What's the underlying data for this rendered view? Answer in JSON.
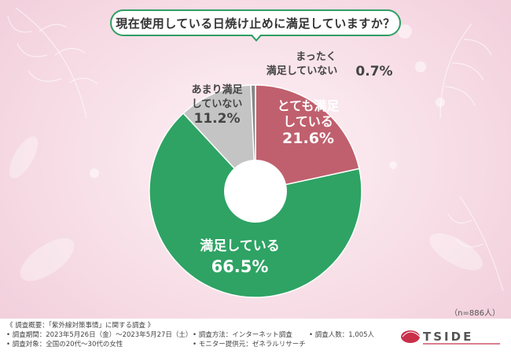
{
  "title": "現在使用している日焼け止めに満足していますか？",
  "sample_size": "（n=886人）",
  "chart_data": {
    "type": "pie",
    "title": "現在使用している日焼け止めに満足していますか？",
    "slices": [
      {
        "label_lines": [
          "とても満足",
          "している"
        ],
        "value": 21.6,
        "value_text": "21.6%",
        "color": "#c0606e",
        "text_color": "#ffffff"
      },
      {
        "label_lines": [
          "満足している"
        ],
        "value": 66.5,
        "value_text": "66.5%",
        "color": "#2ea364",
        "text_color": "#ffffff"
      },
      {
        "label_lines": [
          "あまり満足",
          "していない"
        ],
        "value": 11.2,
        "value_text": "11.2%",
        "color": "#c4c4c4",
        "text_color": "#444444"
      },
      {
        "label_lines": [
          "まったく",
          "満足していない"
        ],
        "value": 0.7,
        "value_text": "0.7%",
        "color": "#888888",
        "text_color": "#444444"
      }
    ]
  },
  "footer": {
    "heading": "《 調査概要：「紫外線対策事情」に関する調査 》",
    "period": "• 調査期間：2023年5月26日（金）～2023年5月27日（土）",
    "target": "• 調査対象：全国の20代～30代の女性",
    "method": "• 調査方法：インターネット調査",
    "respondents": "• 調査人数：1,005人",
    "provider": "• モニター提供元：ゼネラルリサーチ",
    "logo_text": "TSIDE"
  }
}
